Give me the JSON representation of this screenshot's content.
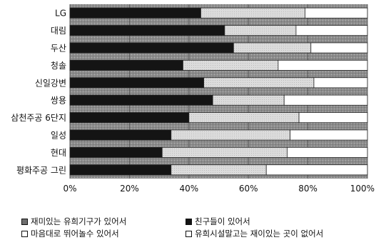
{
  "chart_data": {
    "type": "bar",
    "orientation": "horizontal",
    "stacked": true,
    "percent": true,
    "categories": [
      "LG",
      "대림",
      "두산",
      "청솔",
      "신일강변",
      "쌍용",
      "삼천주공 6단지",
      "일성",
      "현대",
      "평화주공 그린"
    ],
    "series": [
      {
        "name": "재미있는 유희기구가 있어서",
        "values": [
          0,
          0,
          0,
          0,
          0,
          0,
          0,
          0,
          0,
          0
        ]
      },
      {
        "name": "친구들이 있어서",
        "values": [
          44,
          52,
          55,
          38,
          45,
          48,
          40,
          34,
          31,
          34
        ]
      },
      {
        "name": "마음대로 뛰어놀수 있어서",
        "values": [
          35,
          24,
          26,
          32,
          37,
          24,
          37,
          40,
          42,
          32
        ]
      },
      {
        "name": "유희시설말고는 재이있는 곳이 없어서",
        "values": [
          21,
          24,
          19,
          30,
          18,
          28,
          23,
          26,
          27,
          34
        ]
      }
    ],
    "xlim": [
      0,
      100
    ],
    "x_ticks": [
      "0%",
      "20%",
      "40%",
      "60%",
      "80%",
      "100%"
    ],
    "legend_position": "bottom",
    "colors": {
      "series0": "#6e6e6e",
      "series1": "#141414",
      "series2": "#d4d4d4",
      "series3": "#9a9a9a",
      "background": "#8a8a8a"
    }
  }
}
